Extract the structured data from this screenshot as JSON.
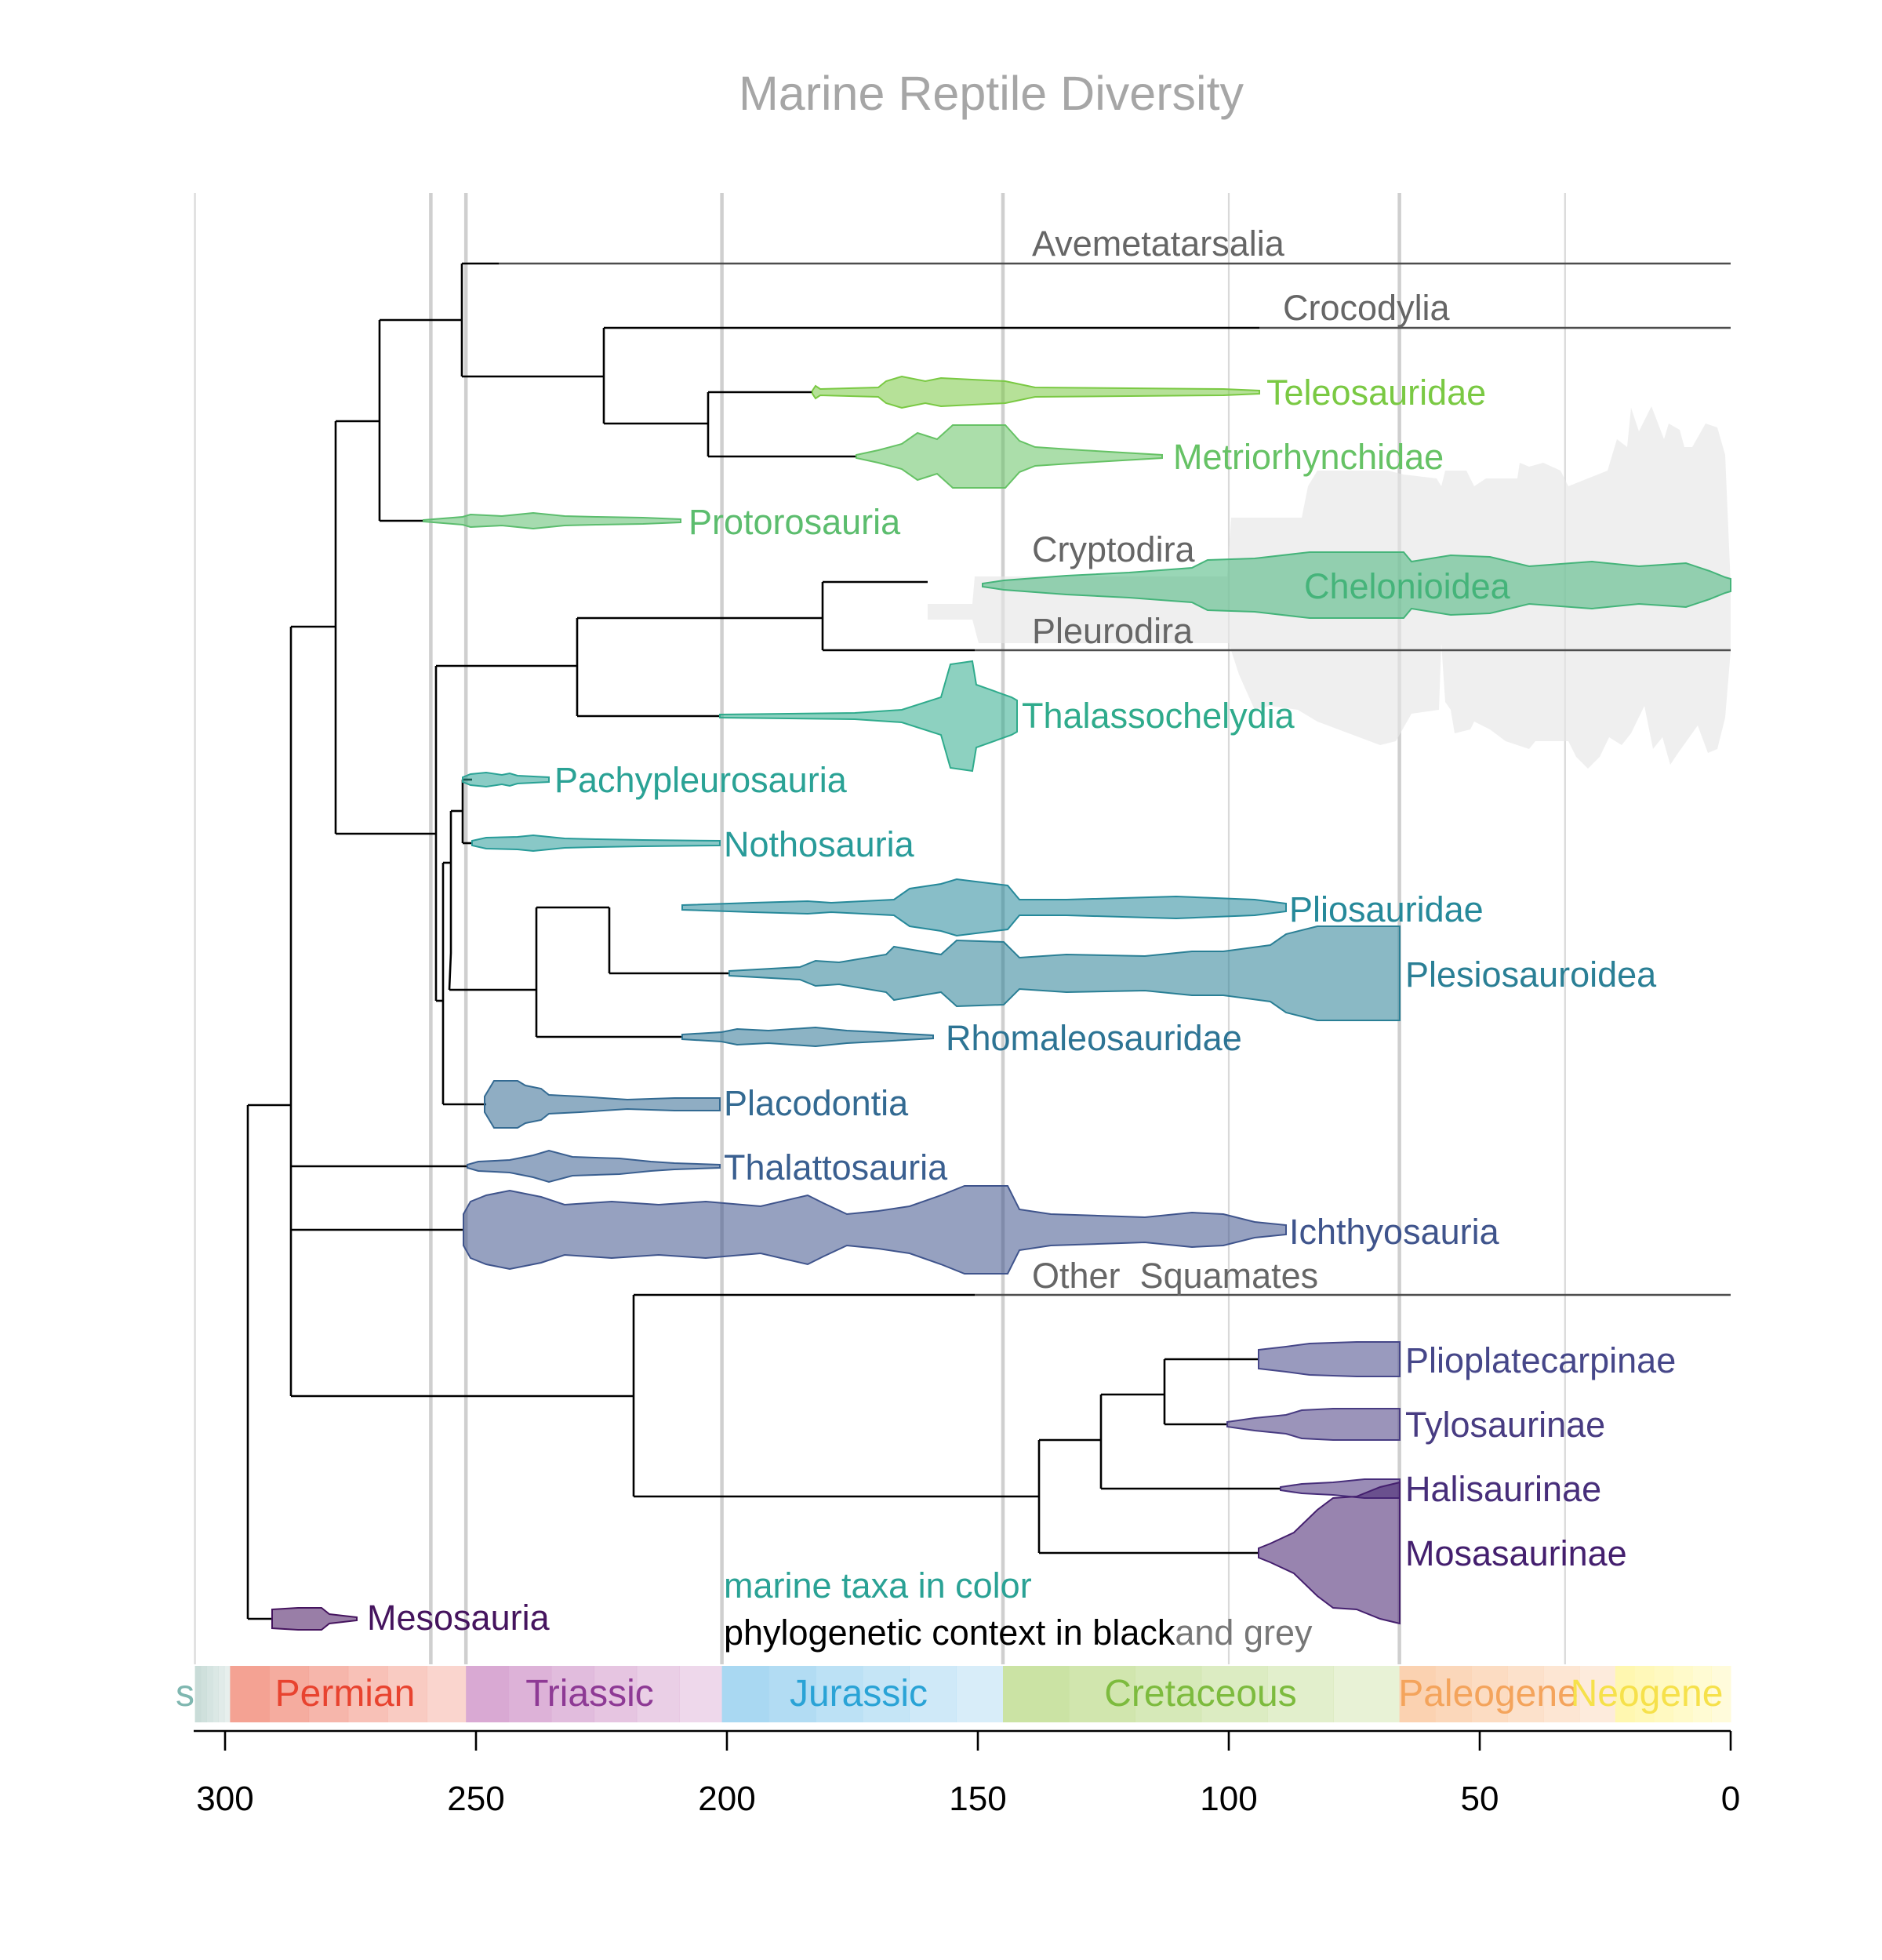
{
  "title": "Marine Reptile Diversity",
  "axis": {
    "ticks": [
      {
        "value": 300,
        "label": "300"
      },
      {
        "value": 250,
        "label": "250"
      },
      {
        "value": 200,
        "label": "200"
      },
      {
        "value": 150,
        "label": "150"
      },
      {
        "value": 100,
        "label": "100"
      },
      {
        "value": 50,
        "label": "50"
      },
      {
        "value": 0,
        "label": "0"
      }
    ],
    "unit_direction": "millions of years ago, decreasing to the right",
    "range": [
      306,
      0
    ]
  },
  "periods": [
    {
      "name": "Carboniferous",
      "label": "s",
      "start": 359,
      "end": 299,
      "color": "#c9dcd8"
    },
    {
      "name": "Permian",
      "label": "Permian",
      "start": 299,
      "end": 252,
      "color": "#f4a293",
      "text_color": "#e8432f"
    },
    {
      "name": "Triassic",
      "label": "Triassic",
      "start": 252,
      "end": 201,
      "color": "#d9a9d3",
      "text_color": "#8e3a95"
    },
    {
      "name": "Jurassic",
      "label": "Jurassic",
      "start": 201,
      "end": 145,
      "color": "#a9d8f2",
      "text_color": "#2aa3d6"
    },
    {
      "name": "Cretaceous",
      "label": "Cretaceous",
      "start": 145,
      "end": 66,
      "color": "#cbe3a4",
      "text_color": "#7dbb3e"
    },
    {
      "name": "Paleogene",
      "label": "Paleogene",
      "start": 66,
      "end": 23,
      "color": "#fbd2b1",
      "text_color": "#f4a45c"
    },
    {
      "name": "Neogene",
      "label": "Neogene",
      "start": 23,
      "end": 0,
      "color": "#fff7b0",
      "text_color": "#f6e14b"
    }
  ],
  "taxa": [
    {
      "name": "Avemetatarsalia",
      "marine": false,
      "start": 245,
      "end": 0,
      "color": "#666666"
    },
    {
      "name": "Crocodylia",
      "marine": false,
      "start": 94,
      "end": 0,
      "color": "#666666"
    },
    {
      "name": "Teleosauridae",
      "marine": true,
      "start": 183,
      "end": 94,
      "color": "#7ac943"
    },
    {
      "name": "Metriorhynchidae",
      "marine": true,
      "start": 174,
      "end": 113,
      "color": "#66c265"
    },
    {
      "name": "Protorosauria",
      "marine": true,
      "start": 260,
      "end": 209,
      "color": "#5cbd6e"
    },
    {
      "name": "Cryptodira",
      "marine": false,
      "start": 160,
      "end": 0,
      "color": "#666666"
    },
    {
      "name": "Chelonioidea",
      "marine": true,
      "start": 149,
      "end": 0,
      "color": "#45b47a"
    },
    {
      "name": "Pleurodira",
      "marine": false,
      "start": 150,
      "end": 0,
      "color": "#666666"
    },
    {
      "name": "Thalassochelydia",
      "marine": true,
      "start": 201,
      "end": 142,
      "color": "#2fab8c"
    },
    {
      "name": "Pachypleurosauria",
      "marine": true,
      "start": 249,
      "end": 236,
      "color": "#2aa295"
    },
    {
      "name": "Nothosauria",
      "marine": true,
      "start": 249,
      "end": 201,
      "color": "#289b99"
    },
    {
      "name": "Pliosauridae",
      "marine": true,
      "start": 208,
      "end": 89,
      "color": "#26899a"
    },
    {
      "name": "Plesiosauroidea",
      "marine": true,
      "start": 199,
      "end": 66,
      "color": "#2a7f95"
    },
    {
      "name": "Rhomaleosauridae",
      "marine": true,
      "start": 208,
      "end": 158,
      "color": "#2d7494"
    },
    {
      "name": "Placodontia",
      "marine": true,
      "start": 247,
      "end": 201,
      "color": "#336a92"
    },
    {
      "name": "Thalattosauria",
      "marine": true,
      "start": 252,
      "end": 201,
      "color": "#3a5f90"
    },
    {
      "name": "Ichthyosauria",
      "marine": true,
      "start": 252,
      "end": 89,
      "color": "#3f548c"
    },
    {
      "name": "Other  Squamates",
      "marine": false,
      "start": 150,
      "end": 0,
      "color": "#666666"
    },
    {
      "name": "Plioplatecarpinae",
      "marine": true,
      "start": 94,
      "end": 66,
      "color": "#464789"
    },
    {
      "name": "Tylosaurinae",
      "marine": true,
      "start": 100,
      "end": 66,
      "color": "#483c82"
    },
    {
      "name": "Halisaurinae",
      "marine": true,
      "start": 90,
      "end": 66,
      "color": "#472e7a"
    },
    {
      "name": "Mosasaurinae",
      "marine": true,
      "start": 94,
      "end": 66,
      "color": "#441f6e"
    },
    {
      "name": "Mesosauria",
      "marine": true,
      "start": 290,
      "end": 277,
      "color": "#45145e"
    }
  ],
  "legend": {
    "line1": "marine taxa in color",
    "line1_color": "#2aa295",
    "line2_black": "phylogenetic context in black",
    "line2_grey": "and grey"
  },
  "boundaries": [
    306,
    259,
    252,
    201,
    145,
    100,
    66,
    33
  ]
}
